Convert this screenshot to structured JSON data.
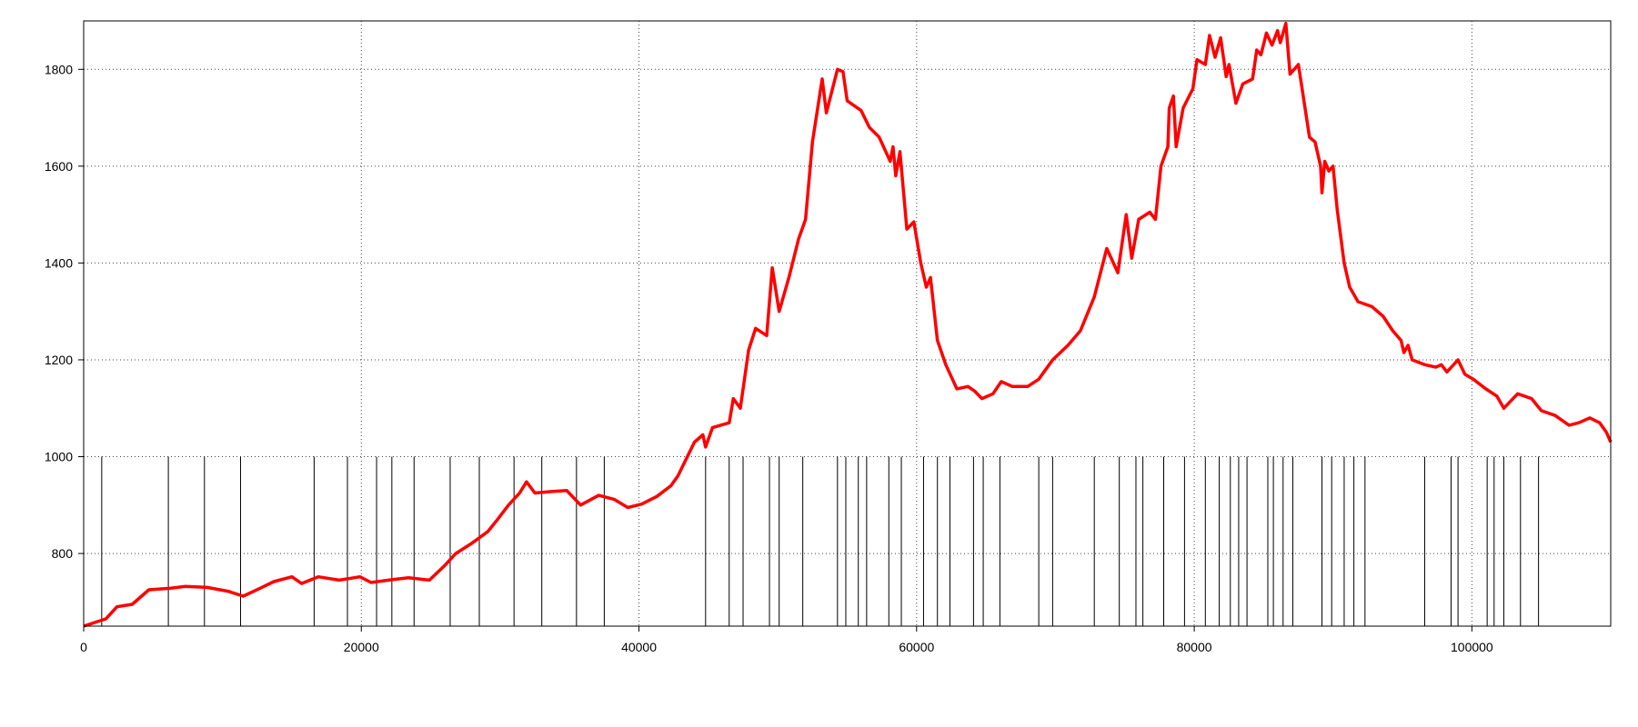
{
  "chart_data": {
    "type": "line",
    "x": [
      0,
      1600,
      2400,
      3500,
      4700,
      6200,
      7300,
      8900,
      10400,
      11500,
      12700,
      13700,
      15000,
      15700,
      16900,
      18400,
      19900,
      20700,
      22200,
      23400,
      24900,
      26000,
      26800,
      27900,
      29100,
      29800,
      30600,
      31400,
      31900,
      32500,
      33700,
      34800,
      35800,
      37100,
      38200,
      39200,
      40200,
      41300,
      42300,
      42800,
      44000,
      44600,
      44800,
      45300,
      46500,
      46800,
      47300,
      47900,
      48400,
      49200,
      49600,
      50100,
      50800,
      51500,
      52000,
      52500,
      53200,
      53500,
      54300,
      54700,
      55000,
      56000,
      56600,
      57300,
      58100,
      58300,
      58500,
      58800,
      59300,
      59800,
      60300,
      60700,
      61000,
      61500,
      62100,
      62900,
      63700,
      64200,
      64700,
      65500,
      66100,
      66900,
      68000,
      68800,
      69800,
      70900,
      71800,
      72800,
      73700,
      74500,
      75100,
      75500,
      76000,
      76800,
      77200,
      77600,
      78100,
      78200,
      78500,
      78700,
      79200,
      79900,
      80200,
      80800,
      81100,
      81500,
      81900,
      82300,
      82500,
      83000,
      83500,
      84200,
      84500,
      84800,
      85200,
      85600,
      86000,
      86200,
      86600,
      86900,
      87500,
      88300,
      88700,
      89100,
      89200,
      89400,
      89700,
      90000,
      90300,
      90800,
      91200,
      91800,
      92800,
      93600,
      94300,
      94900,
      95100,
      95400,
      95700,
      96600,
      97400,
      97800,
      98200,
      99000,
      99500,
      100100,
      101000,
      101800,
      102300,
      103300,
      104300,
      105000,
      106000,
      107000,
      107700,
      108500,
      109200,
      109700,
      110000
    ],
    "series": [
      {
        "color": "#ff0000",
        "values": [
          650,
          665,
          690,
          695,
          725,
          728,
          732,
          730,
          722,
          712,
          728,
          742,
          752,
          738,
          752,
          745,
          752,
          740,
          746,
          750,
          745,
          775,
          800,
          820,
          845,
          870,
          900,
          925,
          948,
          925,
          928,
          930,
          900,
          920,
          912,
          895,
          902,
          918,
          940,
          960,
          1030,
          1045,
          1020,
          1060,
          1070,
          1120,
          1100,
          1220,
          1265,
          1250,
          1390,
          1300,
          1370,
          1450,
          1490,
          1650,
          1780,
          1710,
          1800,
          1795,
          1735,
          1715,
          1680,
          1660,
          1610,
          1640,
          1580,
          1630,
          1470,
          1485,
          1400,
          1350,
          1370,
          1240,
          1190,
          1140,
          1145,
          1135,
          1120,
          1130,
          1155,
          1145,
          1145,
          1160,
          1200,
          1230,
          1260,
          1330,
          1430,
          1380,
          1500,
          1410,
          1490,
          1505,
          1490,
          1600,
          1640,
          1720,
          1745,
          1640,
          1720,
          1760,
          1820,
          1810,
          1870,
          1825,
          1865,
          1785,
          1810,
          1730,
          1770,
          1780,
          1840,
          1830,
          1875,
          1850,
          1880,
          1855,
          1895,
          1790,
          1810,
          1660,
          1650,
          1600,
          1545,
          1610,
          1590,
          1600,
          1510,
          1400,
          1350,
          1320,
          1310,
          1290,
          1260,
          1240,
          1215,
          1230,
          1200,
          1190,
          1185,
          1190,
          1175,
          1200,
          1170,
          1160,
          1140,
          1125,
          1100,
          1130,
          1120,
          1095,
          1085,
          1065,
          1070,
          1080,
          1070,
          1050,
          1030
        ]
      }
    ],
    "event_lines": {
      "color": "#000000",
      "y": 1000,
      "x": [
        1300,
        6100,
        8700,
        11300,
        16600,
        19000,
        21100,
        22200,
        23800,
        26400,
        28500,
        31000,
        33000,
        35500,
        37500,
        44800,
        46500,
        47500,
        49400,
        50100,
        51800,
        54300,
        54900,
        55800,
        56400,
        58000,
        58900,
        60500,
        61500,
        62400,
        64100,
        64800,
        66000,
        68800,
        69800,
        72800,
        74600,
        75800,
        76300,
        77800,
        79300,
        80800,
        81800,
        82600,
        83200,
        83800,
        85300,
        85700,
        86400,
        87100,
        89200,
        89900,
        90800,
        91500,
        92300,
        96600,
        98500,
        99000,
        101100,
        101600,
        102300,
        103500,
        104800
      ]
    },
    "xlim": [
      0,
      110000
    ],
    "ylim": [
      650,
      1900
    ],
    "xticks": [
      0,
      20000,
      40000,
      60000,
      80000,
      100000
    ],
    "yticks": [
      800,
      1000,
      1200,
      1400,
      1600,
      1800
    ],
    "grid": true
  }
}
